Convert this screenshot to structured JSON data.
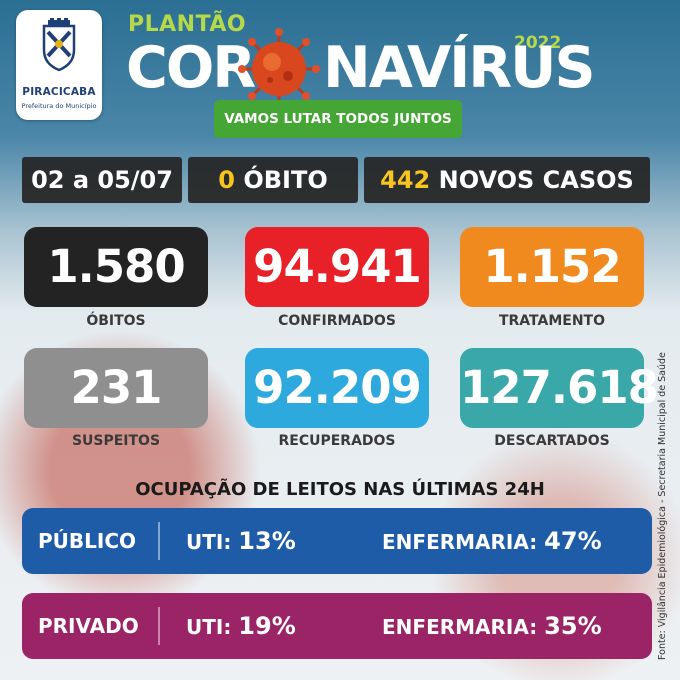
{
  "logo": {
    "city": "PIRACICABA",
    "subtitle": "Prefeitura do Município"
  },
  "header": {
    "kicker": "PLANTÃO",
    "title_left": "COR",
    "title_right": "NAVÍRUS",
    "year": "2022",
    "slogan": "VAMOS LUTAR TODOS JUNTOS"
  },
  "summary": {
    "period": "02 a 05/07",
    "deaths_value": "0",
    "deaths_label": "ÓBITO",
    "new_cases_value": "442",
    "new_cases_label": "NOVOS CASOS"
  },
  "stats": [
    {
      "value": "1.580",
      "label": "ÓBITOS",
      "color": "#232323"
    },
    {
      "value": "94.941",
      "label": "CONFIRMADOS",
      "color": "#e82027"
    },
    {
      "value": "1.152",
      "label": "TRATAMENTO",
      "color": "#f08a1f"
    },
    {
      "value": "231",
      "label": "SUSPEITOS",
      "color": "#8f8f8f"
    },
    {
      "value": "92.209",
      "label": "RECUPERADOS",
      "color": "#2ea9de"
    },
    {
      "value": "127.618",
      "label": "DESCARTADOS",
      "color": "#3aa7a9"
    }
  ],
  "occupancy": {
    "title": "OCUPAÇÃO DE LEITOS NAS ÚLTIMAS 24H",
    "rows": [
      {
        "label": "PÚBLICO",
        "uti_label": "UTI:",
        "uti_value": "13%",
        "enf_label": "ENFERMARIA:",
        "enf_value": "47%",
        "color": "#1f5ca8"
      },
      {
        "label": "PRIVADO",
        "uti_label": "UTI:",
        "uti_value": "19%",
        "enf_label": "ENFERMARIA:",
        "enf_value": "35%",
        "color": "#9b2466"
      }
    ]
  },
  "source": "Fonte: Vigilância Epidemiológica - Secretaria Municipal de Saúde"
}
